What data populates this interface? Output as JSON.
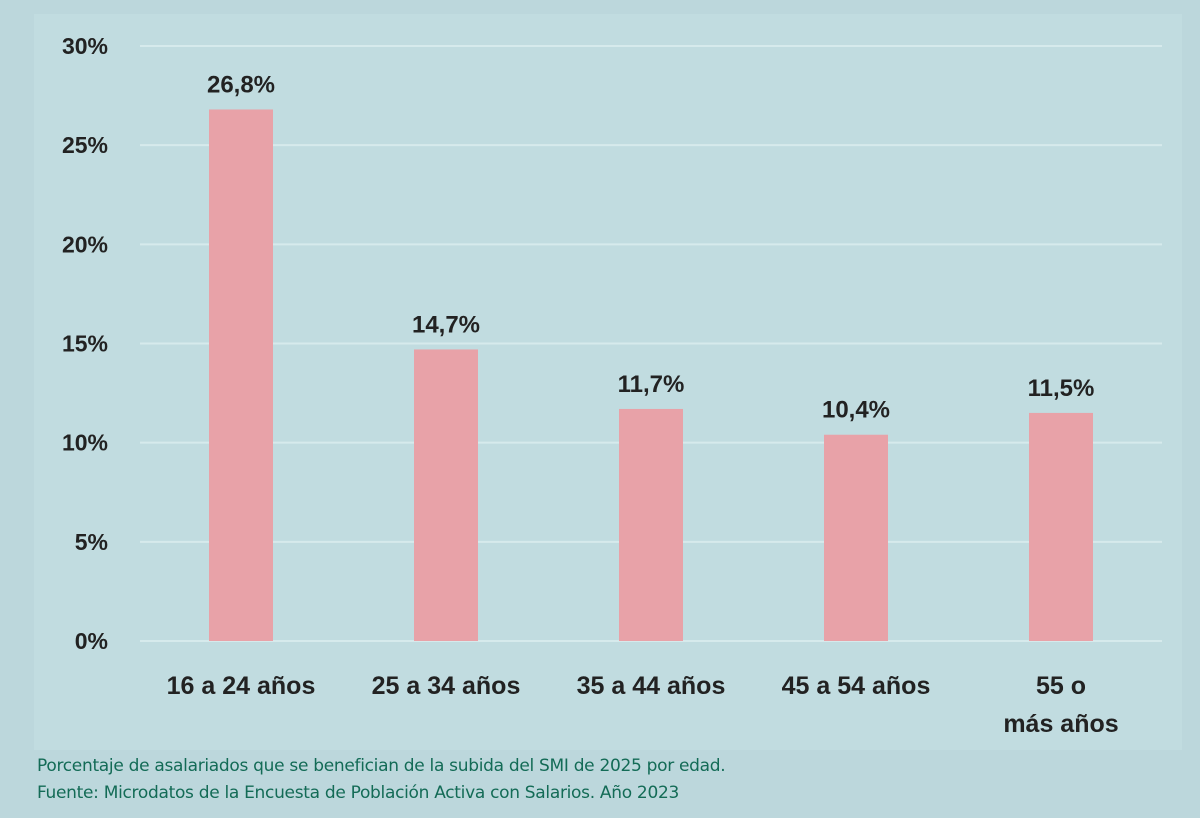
{
  "chart_data": {
    "type": "bar",
    "categories": [
      "16 a 24 años",
      "25 a 34 años",
      "35 a 44 años",
      "45 a 54 años",
      "55 o más años"
    ],
    "values": [
      26.8,
      14.7,
      11.7,
      10.4,
      11.5
    ],
    "data_labels": [
      "26,8%",
      "14,7%",
      "11,7%",
      "10,4%",
      "11,5%"
    ],
    "y_ticks": [
      "0%",
      "5%",
      "10%",
      "15%",
      "20%",
      "25%",
      "30%"
    ],
    "ylim": [
      0,
      30
    ],
    "grid": true,
    "bar_color": "#e8a2a8",
    "title": "",
    "xlabel": "",
    "ylabel": ""
  },
  "footer": {
    "caption": "Porcentaje de asalariados que se benefician de la subida del SMI de 2025 por edad.",
    "source": "Fuente: Microdatos de la Encuesta de Población Activa con Salarios. Año 2023"
  }
}
